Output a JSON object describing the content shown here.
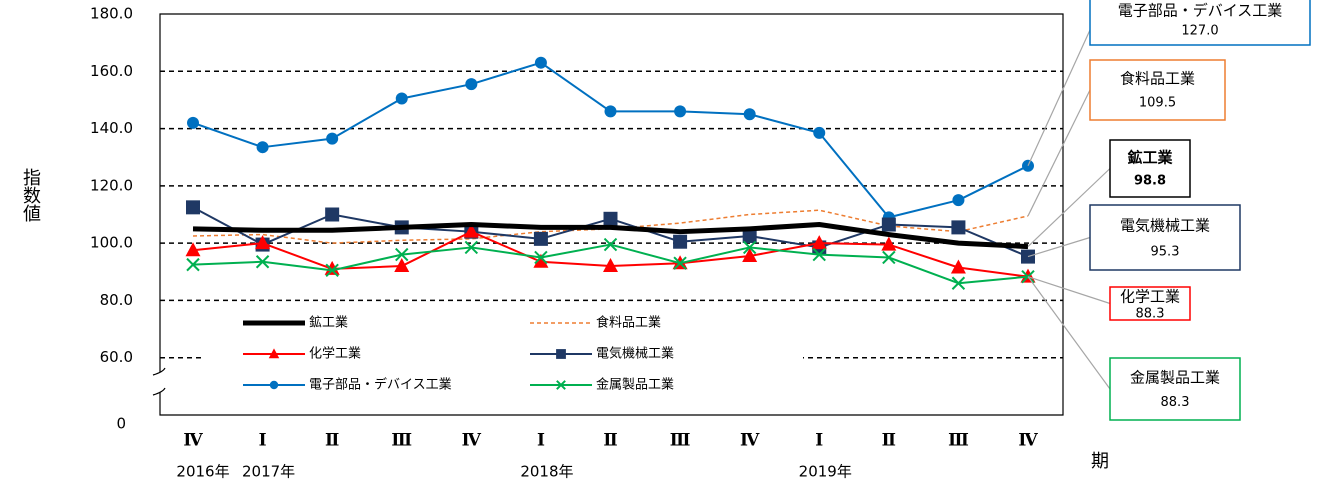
{
  "chart_data": {
    "type": "line",
    "y_label": "指数値",
    "x_label": "期",
    "categories": [
      "Ⅳ",
      "Ⅰ",
      "Ⅱ",
      "Ⅲ",
      "Ⅳ",
      "Ⅰ",
      "Ⅱ",
      "Ⅲ",
      "Ⅳ",
      "Ⅰ",
      "Ⅱ",
      "Ⅲ",
      "Ⅳ"
    ],
    "year_labels": [
      "2016年",
      "2017年",
      null,
      null,
      null,
      "2018年",
      null,
      null,
      null,
      "2019年",
      null,
      null,
      null
    ],
    "ylim": [
      40,
      180
    ],
    "yticks": [
      {
        "value": 60,
        "label": "60.0"
      },
      {
        "value": 80,
        "label": "80.0"
      },
      {
        "value": 100,
        "label": "100.0"
      },
      {
        "value": 120,
        "label": "120.0"
      },
      {
        "value": 140,
        "label": "140.0"
      },
      {
        "value": 160,
        "label": "160.0"
      },
      {
        "value": 180,
        "label": "180.0"
      }
    ],
    "y_break_label": "0",
    "grid": true,
    "series": [
      {
        "name": "鉱工業",
        "color": "#000000",
        "line_width": 5,
        "dash": "none",
        "marker": "none",
        "values": [
          105.0,
          104.5,
          104.5,
          105.5,
          106.5,
          105.5,
          105.5,
          104.0,
          105.0,
          106.5,
          103.0,
          100.0,
          98.8
        ],
        "value_labels": [
          null,
          null,
          null,
          null,
          null,
          null,
          null,
          null,
          null,
          null,
          null,
          null,
          "98.8"
        ]
      },
      {
        "name": "食料品工業",
        "color": "#ed7d31",
        "line_width": 1.5,
        "dash": "4 3",
        "marker": "none",
        "values": [
          102.5,
          103.0,
          100.0,
          101.0,
          101.5,
          104.0,
          105.0,
          107.0,
          110.0,
          111.5,
          106.0,
          104.0,
          109.5
        ],
        "value_labels": [
          null,
          null,
          null,
          null,
          null,
          null,
          null,
          null,
          null,
          null,
          null,
          null,
          "109.5"
        ]
      },
      {
        "name": "化学工業",
        "color": "#ff0000",
        "line_width": 2,
        "dash": "none",
        "marker": "triangle",
        "values": [
          97.5,
          100.0,
          91.0,
          92.0,
          104.0,
          93.5,
          92.0,
          93.0,
          95.5,
          100.0,
          99.5,
          91.5,
          88.3
        ],
        "value_labels": [
          null,
          null,
          null,
          null,
          null,
          null,
          null,
          null,
          null,
          null,
          null,
          null,
          "88.3"
        ]
      },
      {
        "name": "電気機械工業",
        "color": "#1f3864",
        "line_width": 2,
        "dash": "none",
        "marker": "square",
        "values": [
          112.5,
          99.5,
          110.0,
          105.5,
          104.0,
          101.5,
          108.5,
          100.5,
          102.5,
          98.5,
          106.5,
          105.5,
          95.3
        ],
        "value_labels": [
          null,
          null,
          null,
          null,
          null,
          null,
          null,
          null,
          null,
          null,
          null,
          null,
          "95.3"
        ]
      },
      {
        "name": "電子部品・デバイス工業",
        "color": "#0070c0",
        "line_width": 2,
        "dash": "none",
        "marker": "circle",
        "values": [
          142.0,
          133.5,
          136.5,
          150.5,
          155.5,
          163.0,
          146.0,
          146.0,
          145.0,
          138.5,
          109.0,
          115.0,
          127.0
        ],
        "value_labels": [
          null,
          null,
          null,
          null,
          null,
          null,
          null,
          null,
          null,
          null,
          null,
          null,
          "127.0"
        ]
      },
      {
        "name": "金属製品工業",
        "color": "#00b050",
        "line_width": 2,
        "dash": "none",
        "marker": "x",
        "values": [
          92.5,
          93.5,
          90.5,
          96.0,
          98.5,
          95.0,
          99.5,
          93.0,
          98.5,
          96.0,
          95.0,
          86.0,
          88.3
        ],
        "value_labels": [
          null,
          null,
          null,
          null,
          null,
          null,
          null,
          null,
          null,
          null,
          null,
          null,
          "88.3"
        ]
      }
    ]
  }
}
